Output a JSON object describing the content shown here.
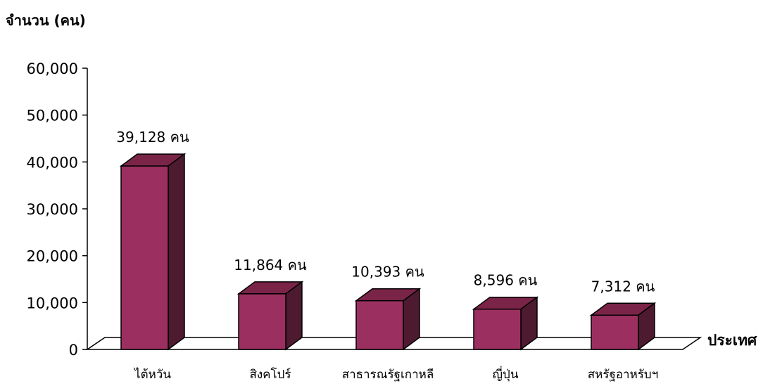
{
  "chart_data": {
    "type": "bar",
    "ylabel": "จำนวน (คน)",
    "xlabel": "ประเทศ",
    "categories": [
      "ไต้หวัน",
      "สิงคโปร์",
      "สาธารณรัฐเกาหลี",
      "ญี่ปุ่น",
      "สหรัฐอาหรับฯ"
    ],
    "values": [
      39128,
      11864,
      10393,
      8596,
      7312
    ],
    "data_labels": [
      "39,128 คน",
      "11,864 คน",
      "10,393 คน",
      "8,596 คน",
      "7,312 คน"
    ],
    "ylim": [
      0,
      60000
    ],
    "yticks": [
      0,
      10000,
      20000,
      30000,
      40000,
      50000,
      60000
    ],
    "ytick_labels": [
      "0",
      "10,000",
      "20,000",
      "30,000",
      "40,000",
      "50,000",
      "60,000"
    ],
    "grid": false,
    "legend": "none",
    "colors": {
      "bar_front": "#9b3060",
      "bar_top": "#7a2448",
      "bar_side": "#4e1a30",
      "outline": "#000000"
    }
  }
}
